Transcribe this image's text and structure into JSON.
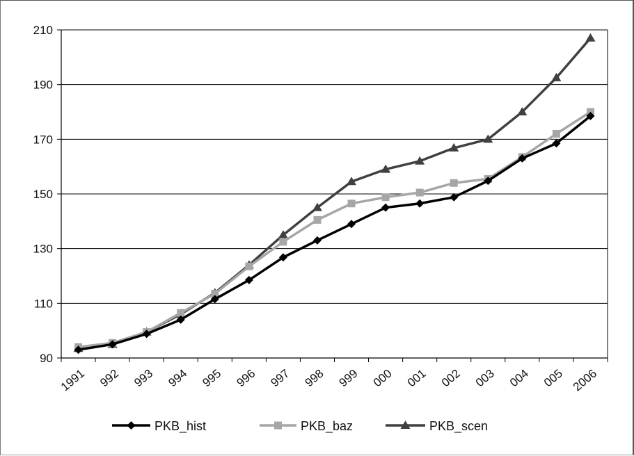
{
  "chart_data": {
    "type": "line",
    "title": "",
    "xlabel": "",
    "ylabel": "",
    "categories": [
      "1991",
      "1992",
      "1993",
      "1994",
      "1995",
      "1996",
      "1997",
      "1998",
      "1999",
      "2000",
      "2001",
      "2002",
      "2003",
      "2004",
      "2005",
      "2006"
    ],
    "x_tick_labels": [
      "1991",
      "992",
      "993",
      "994",
      "995",
      "996",
      "997",
      "998",
      "999",
      "000",
      "001",
      "002",
      "003",
      "004",
      "005",
      "2006"
    ],
    "ylim": [
      90,
      210
    ],
    "y_ticks": [
      90,
      110,
      130,
      150,
      170,
      190,
      210
    ],
    "grid": "horizontal",
    "legend_position": "bottom",
    "series": [
      {
        "name": "PKB_hist",
        "color": "#000000",
        "marker": "diamond",
        "values": [
          93.0,
          95.0,
          98.8,
          104.0,
          111.5,
          118.5,
          126.8,
          133.0,
          139.0,
          145.0,
          146.5,
          148.8,
          154.8,
          163.0,
          168.5,
          178.5
        ]
      },
      {
        "name": "PKB_baz",
        "color": "#a6a6a6",
        "marker": "square",
        "values": [
          94.0,
          95.5,
          99.5,
          106.5,
          113.5,
          123.5,
          132.5,
          140.5,
          146.5,
          148.8,
          150.5,
          154.0,
          155.5,
          163.5,
          172.0,
          180.0
        ]
      },
      {
        "name": "PKB_scen",
        "color": "#404040",
        "marker": "triangle",
        "values": [
          93.5,
          95.0,
          99.5,
          106.0,
          113.8,
          124.0,
          135.0,
          145.0,
          154.5,
          159.0,
          162.0,
          166.8,
          170.0,
          180.0,
          192.5,
          207.0
        ]
      }
    ]
  }
}
